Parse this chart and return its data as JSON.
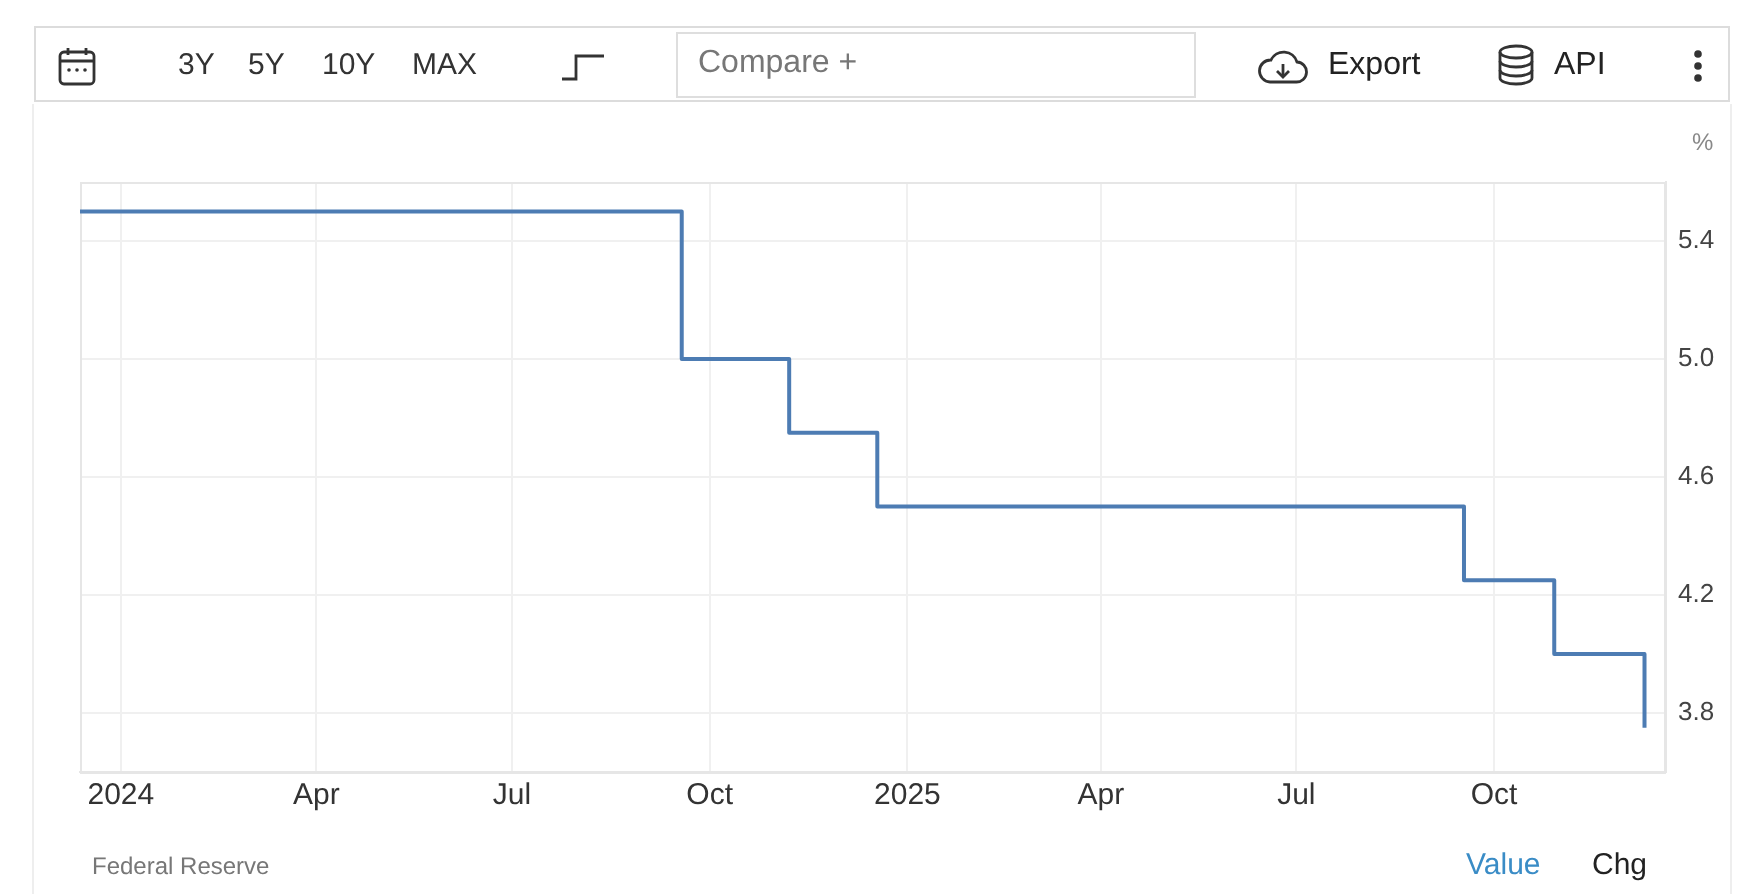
{
  "chart_data": {
    "type": "step",
    "x": [
      "2023-12-13",
      "2024-09-18",
      "2024-11-07",
      "2024-12-18",
      "2025-09-17",
      "2025-10-29",
      "2025-12-10"
    ],
    "values": [
      5.5,
      5.0,
      4.75,
      4.5,
      4.25,
      4.0,
      3.75
    ],
    "color": "#4d7cb3",
    "ylabel": "%",
    "xlim": [
      "2023-12-13",
      "2025-12-20"
    ],
    "xticks": [
      {
        "value": "2024-01-01",
        "label": "2024"
      },
      {
        "value": "2024-04-01",
        "label": "Apr"
      },
      {
        "value": "2024-07-01",
        "label": "Jul"
      },
      {
        "value": "2024-10-01",
        "label": "Oct"
      },
      {
        "value": "2025-01-01",
        "label": "2025"
      },
      {
        "value": "2025-04-01",
        "label": "Apr"
      },
      {
        "value": "2025-07-01",
        "label": "Jul"
      },
      {
        "value": "2025-10-01",
        "label": "Oct"
      }
    ],
    "ylim": [
      3.6,
      5.6
    ],
    "yticks": [
      3.8,
      4.2,
      4.6,
      {
        "value": 5.0,
        "label": "5.0"
      },
      5.4
    ],
    "grid": true,
    "annotations": [
      "3Y",
      "5Y",
      "10Y",
      "MAX",
      "Compare +",
      "Export",
      "API",
      "Federal Reserve",
      "Value",
      "Chg"
    ]
  }
}
